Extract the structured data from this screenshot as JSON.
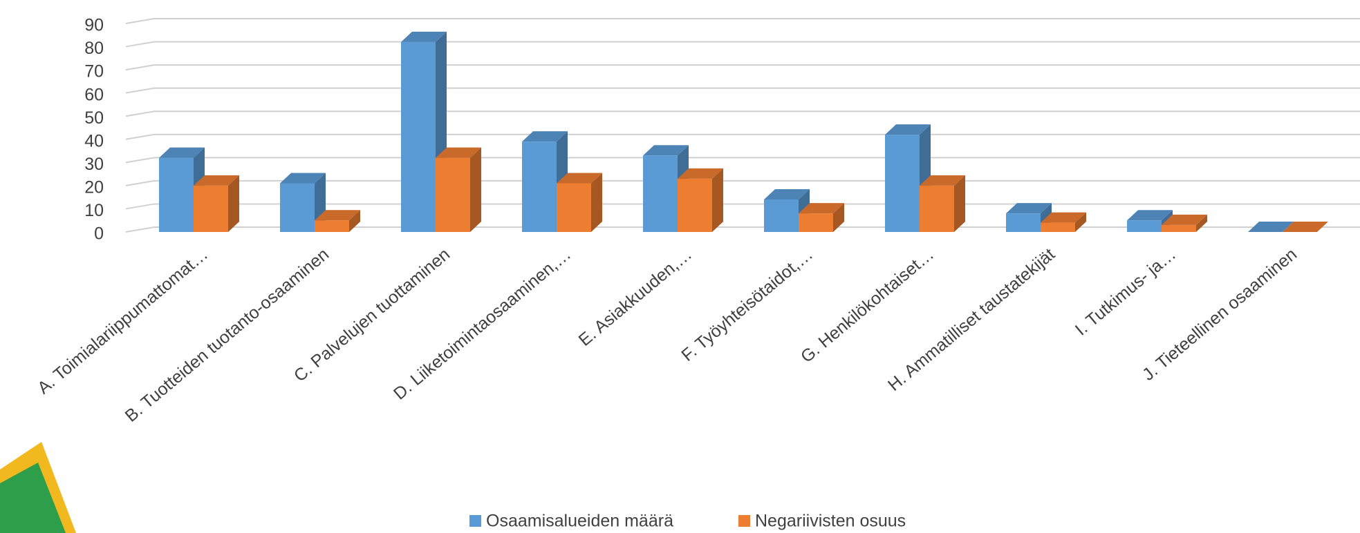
{
  "chart_data": {
    "type": "bar3d",
    "categories": [
      "A. Toimialariippumattomat…",
      "B. Tuotteiden tuotanto-osaaminen",
      "C. Palvelujen tuottaminen",
      "D. Liiketoimintaosaaminen,…",
      "E. Asiakkuuden,…",
      "F. Työyhteisötaidot,…",
      "G. Henkilökohtaiset…",
      "H. Ammatilliset taustatekijät",
      "I. Tutkimus- ja…",
      "J. Tieteellinen osaaminen"
    ],
    "series": [
      {
        "name": "Osaamisalueiden määrä",
        "color": "#5b9bd5",
        "values": [
          32,
          21,
          82,
          39,
          33,
          14,
          42,
          8,
          5,
          0
        ]
      },
      {
        "name": "Negariivisten osuus",
        "color": "#ed7d31",
        "values": [
          20,
          5,
          32,
          21,
          23,
          8,
          20,
          4,
          3,
          0
        ]
      }
    ],
    "ylim": [
      0,
      90
    ],
    "yticks": [
      0,
      10,
      20,
      30,
      40,
      50,
      60,
      70,
      80,
      90
    ],
    "grid": true,
    "legend": "bottom"
  }
}
